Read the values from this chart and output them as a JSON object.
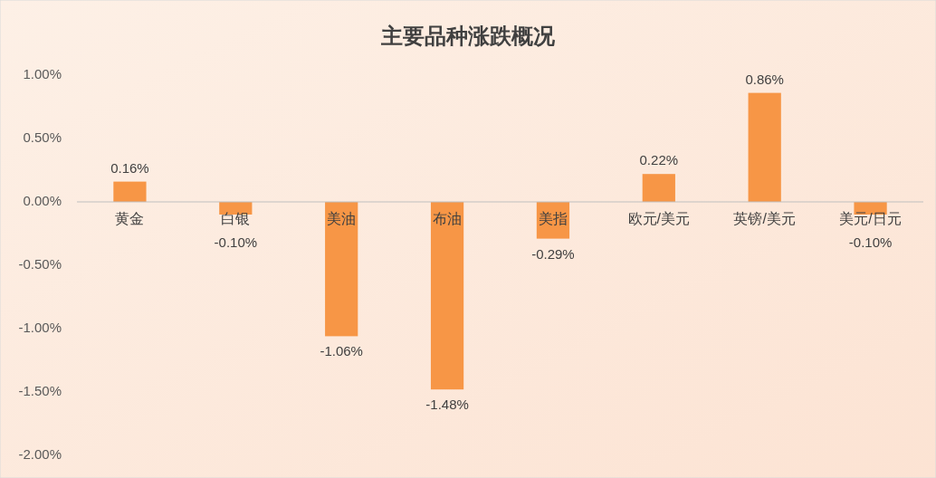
{
  "chart_data": {
    "type": "bar",
    "title": "主要品种涨跌概况",
    "categories": [
      "黄金",
      "白银",
      "美油",
      "布油",
      "美指",
      "欧元/美元",
      "英镑/美元",
      "美元/日元"
    ],
    "values": [
      0.16,
      -0.1,
      -1.06,
      -1.48,
      -0.29,
      0.22,
      0.86,
      -0.1
    ],
    "value_labels": [
      "0.16%",
      "-0.10%",
      "-1.06%",
      "-1.48%",
      "-0.29%",
      "0.22%",
      "0.86%",
      "-0.10%"
    ],
    "color": "#f79646",
    "ylim": [
      -2,
      1
    ],
    "yticks": [
      {
        "value": 1,
        "label": "1.00%"
      },
      {
        "value": 0.5,
        "label": "0.50%"
      },
      {
        "value": 0,
        "label": "0.00%"
      },
      {
        "value": -0.5,
        "label": "-0.50%"
      },
      {
        "value": -1,
        "label": "-1.00%"
      },
      {
        "value": -1.5,
        "label": "-1.50%"
      },
      {
        "value": -2,
        "label": "-2.00%"
      }
    ],
    "grid": false
  }
}
